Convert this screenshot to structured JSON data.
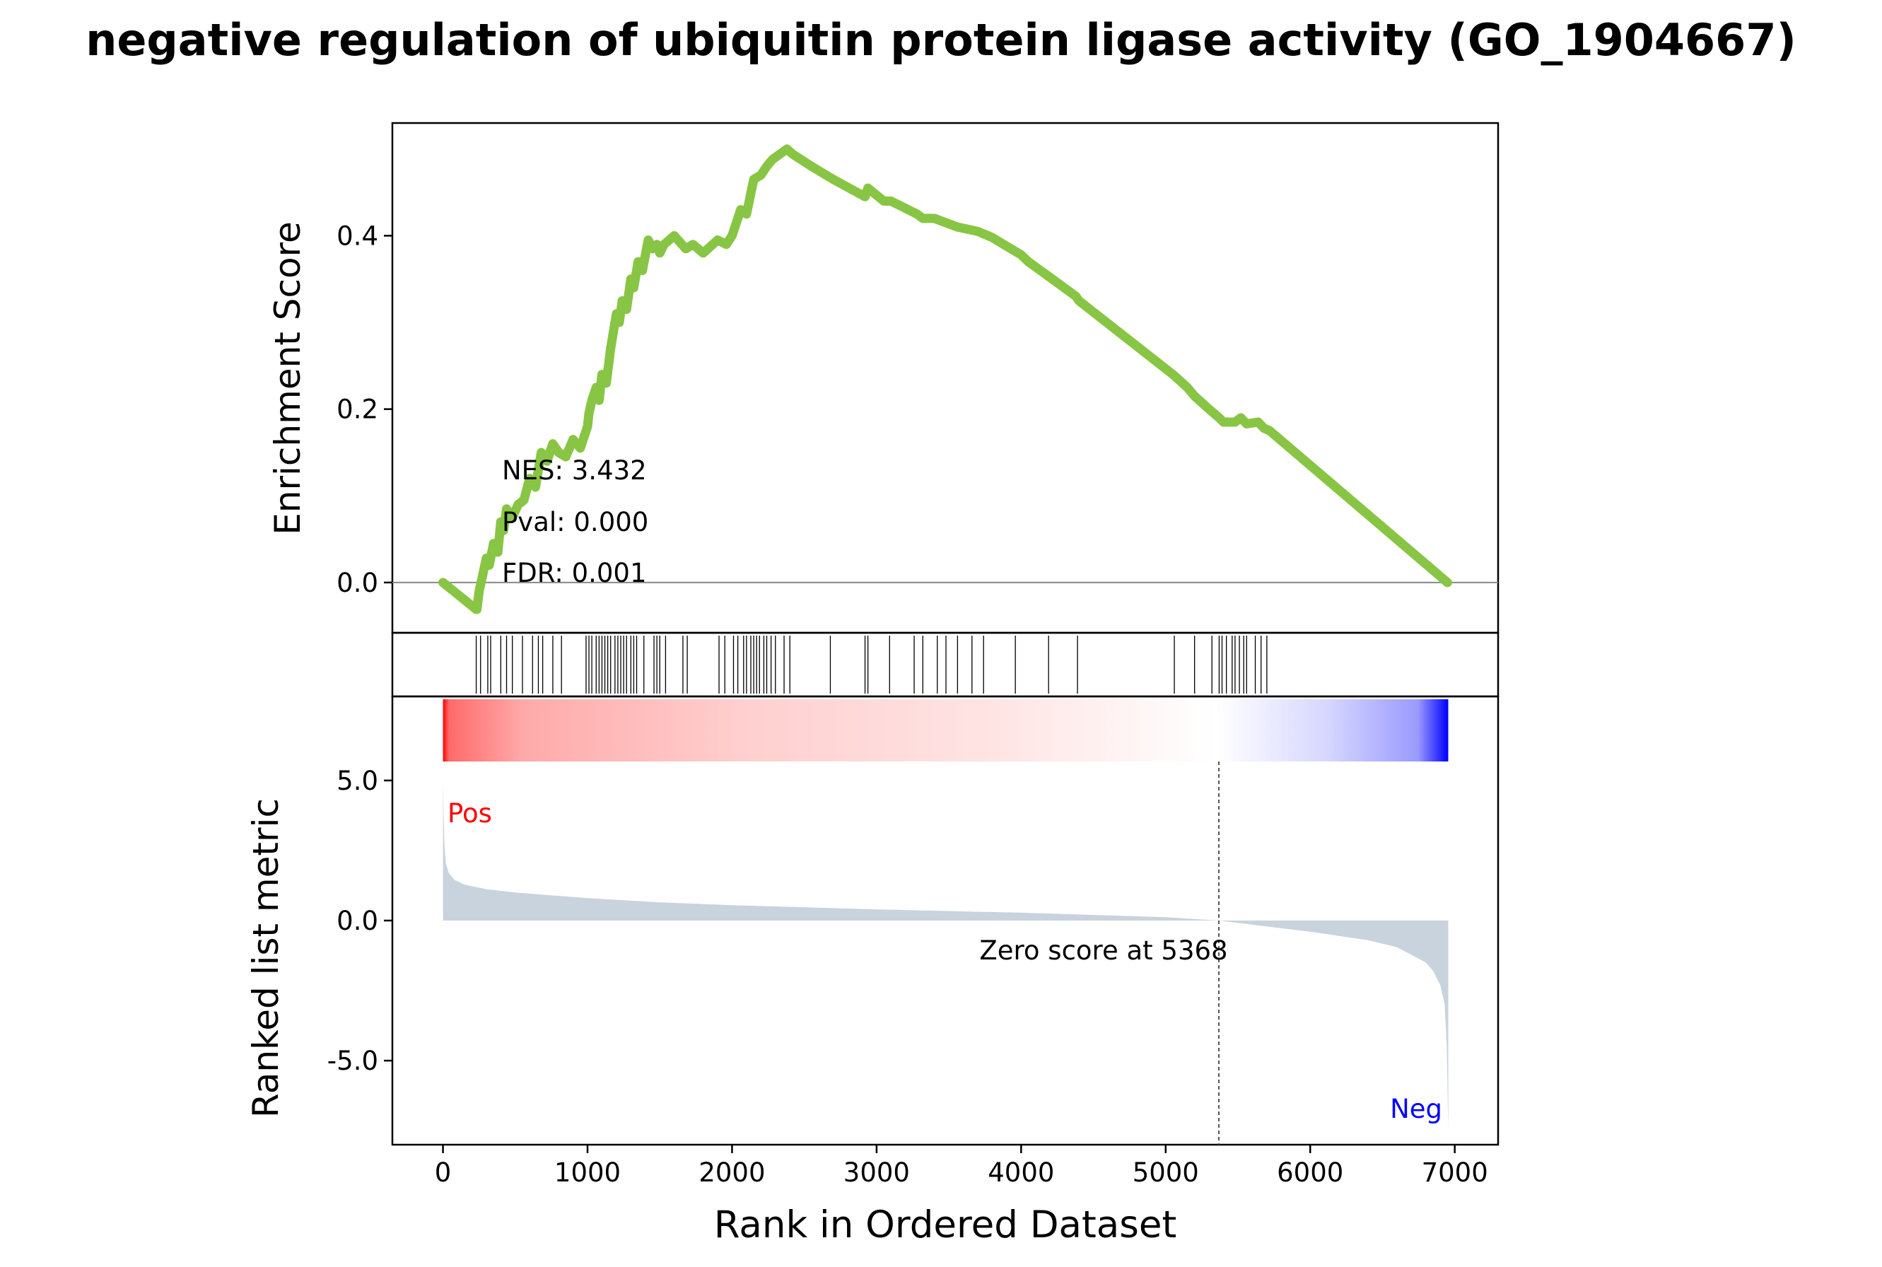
{
  "chart_data": {
    "type": "line",
    "title": "negative regulation of ubiquitin protein ligase activity (GO_1904667)",
    "xlabel": "Rank in Ordered Dataset",
    "xlim": [
      -350,
      7300
    ],
    "x_ticks": [
      0,
      1000,
      2000,
      3000,
      4000,
      5000,
      6000,
      7000
    ],
    "x_tick_labels": [
      "0",
      "1000",
      "2000",
      "3000",
      "4000",
      "5000",
      "6000",
      "7000"
    ],
    "colors": {
      "es_line": "#88c544",
      "fill": "#c9d3dd",
      "pos_label": "#ff0000",
      "neg_label": "#0000ff",
      "gradient_start": "#ff0000",
      "gradient_mid": "#ffffff",
      "gradient_end": "#0000ff"
    },
    "enrichment": {
      "ylabel": "Enrichment Score",
      "ylim": [
        -0.058,
        0.53
      ],
      "y_ticks": [
        0.0,
        0.2,
        0.4
      ],
      "y_tick_labels": [
        "0.0",
        "0.2",
        "0.4"
      ],
      "stats": [
        "NES: 3.432",
        "Pval: 0.000",
        "FDR: 0.001"
      ],
      "x": [
        0,
        230,
        235,
        250,
        270,
        300,
        320,
        350,
        380,
        400,
        420,
        440,
        480,
        520,
        560,
        600,
        640,
        680,
        720,
        760,
        800,
        850,
        900,
        950,
        1000,
        1010,
        1030,
        1060,
        1080,
        1100,
        1130,
        1160,
        1180,
        1200,
        1220,
        1240,
        1270,
        1300,
        1320,
        1350,
        1380,
        1420,
        1450,
        1480,
        1500,
        1530,
        1600,
        1680,
        1730,
        1800,
        1900,
        1960,
        2000,
        2060,
        2100,
        2150,
        2200,
        2240,
        2280,
        2330,
        2380,
        2420,
        2550,
        2700,
        2920,
        2940,
        3050,
        3100,
        3280,
        3320,
        3400,
        3480,
        3560,
        3700,
        3800,
        4000,
        4050,
        4200,
        4380,
        4400,
        5050,
        5150,
        5200,
        5300,
        5370,
        5400,
        5480,
        5520,
        5560,
        5640,
        5680,
        5720,
        6950
      ],
      "y": [
        0.0,
        -0.031,
        -0.031,
        -0.01,
        0.005,
        0.028,
        0.02,
        0.045,
        0.035,
        0.07,
        0.06,
        0.085,
        0.075,
        0.09,
        0.095,
        0.12,
        0.11,
        0.15,
        0.14,
        0.16,
        0.15,
        0.145,
        0.165,
        0.155,
        0.18,
        0.195,
        0.21,
        0.225,
        0.21,
        0.24,
        0.23,
        0.27,
        0.29,
        0.31,
        0.3,
        0.325,
        0.315,
        0.35,
        0.34,
        0.37,
        0.36,
        0.395,
        0.385,
        0.39,
        0.38,
        0.39,
        0.4,
        0.385,
        0.39,
        0.38,
        0.395,
        0.39,
        0.4,
        0.43,
        0.425,
        0.465,
        0.47,
        0.48,
        0.488,
        0.494,
        0.5,
        0.494,
        0.48,
        0.465,
        0.445,
        0.455,
        0.44,
        0.44,
        0.425,
        0.42,
        0.42,
        0.415,
        0.41,
        0.405,
        0.398,
        0.378,
        0.37,
        0.352,
        0.33,
        0.325,
        0.24,
        0.225,
        0.215,
        0.2,
        0.19,
        0.185,
        0.185,
        0.19,
        0.183,
        0.185,
        0.178,
        0.175,
        0.0
      ]
    },
    "hits": {
      "x": [
        230,
        260,
        310,
        330,
        400,
        440,
        480,
        550,
        620,
        660,
        690,
        760,
        820,
        990,
        1010,
        1030,
        1060,
        1080,
        1100,
        1120,
        1140,
        1160,
        1190,
        1210,
        1230,
        1250,
        1270,
        1300,
        1320,
        1340,
        1390,
        1460,
        1480,
        1500,
        1540,
        1660,
        1690,
        1910,
        1950,
        2010,
        2040,
        2080,
        2100,
        2130,
        2150,
        2170,
        2190,
        2220,
        2240,
        2270,
        2300,
        2360,
        2400,
        2680,
        2920,
        2940,
        3090,
        3260,
        3320,
        3420,
        3480,
        3560,
        3660,
        3740,
        3960,
        4190,
        4390,
        5060,
        5200,
        5320,
        5370,
        5390,
        5420,
        5460,
        5480,
        5510,
        5540,
        5560,
        5620,
        5660,
        5700
      ]
    },
    "ranked": {
      "ylabel": "Ranked list metric",
      "ylim": [
        -8.0,
        8.0
      ],
      "y_ticks": [
        5.0,
        0.0,
        -5.0
      ],
      "y_tick_labels": [
        "5.0",
        "0.0",
        "-5.0"
      ],
      "x": [
        0,
        5,
        10,
        20,
        40,
        80,
        150,
        300,
        500,
        1000,
        1500,
        2000,
        3000,
        4000,
        5000,
        5368,
        5600,
        6000,
        6400,
        6600,
        6800,
        6850,
        6900,
        6930,
        6945,
        6955
      ],
      "y": [
        4.85,
        3.6,
        2.7,
        2.05,
        1.7,
        1.45,
        1.28,
        1.12,
        1.0,
        0.8,
        0.65,
        0.55,
        0.4,
        0.28,
        0.12,
        0.0,
        -0.15,
        -0.4,
        -0.7,
        -0.95,
        -1.5,
        -1.8,
        -2.3,
        -3.0,
        -4.5,
        -7.5
      ],
      "pos_label": "Pos",
      "neg_label": "Neg",
      "zero_cross": 5368,
      "zero_label": "Zero score at 5368"
    }
  }
}
